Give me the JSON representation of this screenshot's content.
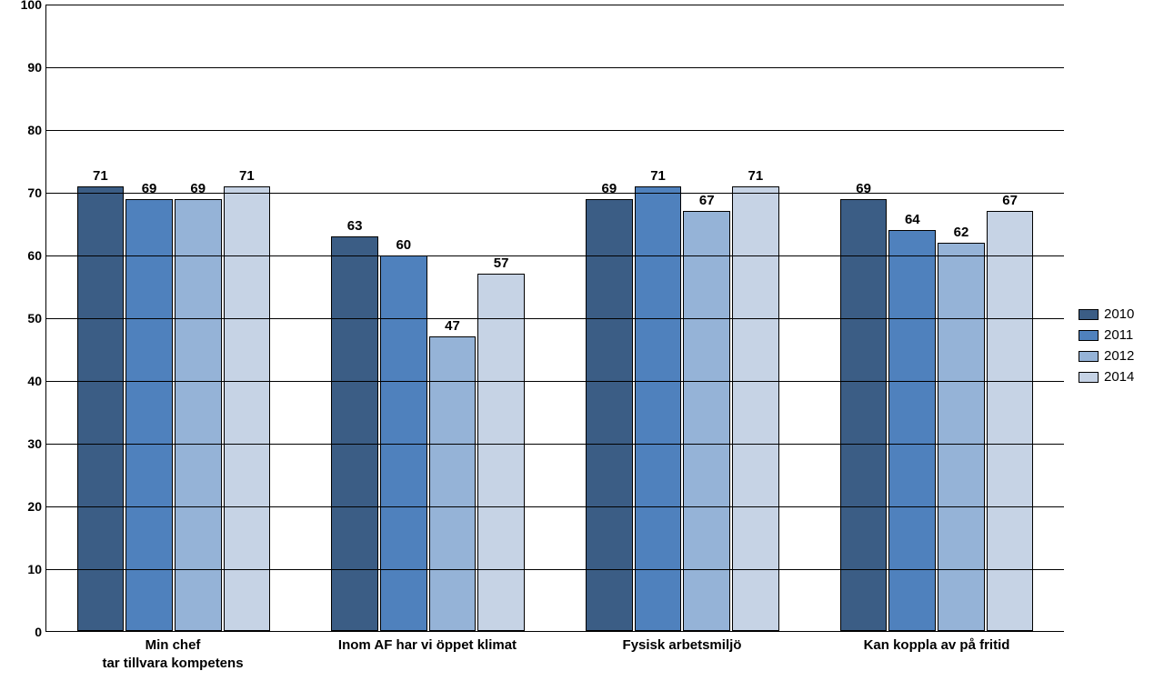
{
  "chart": {
    "type": "bar",
    "ylim": [
      0,
      100
    ],
    "ytick_step": 10,
    "background_color": "#ffffff",
    "grid_color": "#000000",
    "axis_color": "#000000",
    "label_fontsize": 15,
    "value_fontsize": 15,
    "tick_fontsize": 14,
    "font_weight": "bold",
    "bar_border_color": "#000000",
    "series": [
      {
        "name": "2010",
        "color": "#3b5d85"
      },
      {
        "name": "2011",
        "color": "#4f81bd"
      },
      {
        "name": "2012",
        "color": "#95b3d7"
      },
      {
        "name": "2014",
        "color": "#c6d3e5"
      }
    ],
    "categories": [
      {
        "label_lines": [
          "Min chef",
          "tar tillvara kompetens"
        ],
        "values": [
          71,
          69,
          69,
          71
        ]
      },
      {
        "label_lines": [
          "Inom AF har vi öppet klimat"
        ],
        "values": [
          63,
          60,
          47,
          57
        ]
      },
      {
        "label_lines": [
          "Fysisk arbetsmiljö"
        ],
        "values": [
          69,
          71,
          67,
          71
        ]
      },
      {
        "label_lines": [
          "Kan koppla av på fritid"
        ],
        "values": [
          69,
          64,
          62,
          67
        ]
      }
    ]
  }
}
